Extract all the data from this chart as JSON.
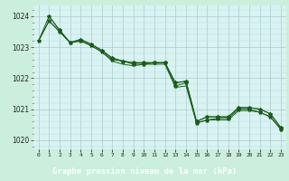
{
  "xlabel": "Graphe pression niveau de la mer (hPa)",
  "ylim": [
    1019.7,
    1024.35
  ],
  "xlim": [
    -0.5,
    23.5
  ],
  "background_color": "#cceedd",
  "plot_bg_color": "#d9f2f2",
  "grid_major_color": "#aacccc",
  "grid_minor_color": "#bbdddd",
  "line_color": "#1a5c1a",
  "label_bg_color": "#3a7a3a",
  "label_text_color": "#ffffff",
  "xtick_labels": [
    "0",
    "1",
    "2",
    "3",
    "4",
    "5",
    "6",
    "7",
    "8",
    "9",
    "10",
    "11",
    "12",
    "13",
    "14",
    "15",
    "16",
    "17",
    "18",
    "19",
    "20",
    "21",
    "22",
    "23"
  ],
  "yticks": [
    1020,
    1021,
    1022,
    1023,
    1024
  ],
  "line1_x": [
    0,
    1,
    2,
    3,
    4,
    5,
    6,
    7,
    8,
    9,
    10,
    11,
    12,
    13,
    14,
    15,
    16,
    17,
    18,
    19,
    20,
    21,
    22,
    23
  ],
  "line1_y": [
    1023.2,
    1023.85,
    1023.5,
    1023.15,
    1023.2,
    1023.05,
    1022.85,
    1022.6,
    1022.55,
    1022.5,
    1022.5,
    1022.5,
    1022.5,
    1021.85,
    1021.9,
    1020.6,
    1020.75,
    1020.75,
    1020.75,
    1021.05,
    1021.05,
    1021.0,
    1020.85,
    1020.4
  ],
  "line2_x": [
    0,
    1,
    2,
    3,
    4,
    5,
    6,
    7,
    8,
    9,
    10,
    11,
    12,
    13,
    14,
    15,
    16,
    17,
    18,
    19,
    20,
    21,
    22,
    23
  ],
  "line2_y": [
    1023.2,
    1023.85,
    1023.5,
    1023.15,
    1023.2,
    1023.05,
    1022.85,
    1022.55,
    1022.45,
    1022.4,
    1022.45,
    1022.45,
    1022.45,
    1021.7,
    1021.75,
    1020.55,
    1020.65,
    1020.65,
    1020.65,
    1020.95,
    1020.95,
    1020.9,
    1020.75,
    1020.35
  ],
  "line3_x": [
    0,
    1,
    2,
    3,
    4,
    5,
    6,
    7,
    8,
    9,
    10,
    11,
    12,
    13,
    14,
    15,
    16,
    17,
    18,
    19,
    20,
    21,
    22,
    23
  ],
  "line3_y": [
    1023.2,
    1024.0,
    1023.55,
    1023.15,
    1023.25,
    1023.1,
    1022.9,
    1022.65,
    1022.55,
    1022.5,
    1022.5,
    1022.5,
    1022.5,
    1021.85,
    1021.9,
    1020.6,
    1020.75,
    1020.75,
    1020.75,
    1021.05,
    1021.05,
    1021.0,
    1020.85,
    1020.4
  ],
  "line4_x": [
    1,
    2,
    3,
    4,
    5,
    6,
    7,
    8,
    9,
    10,
    11,
    12,
    13,
    14,
    15,
    16,
    17,
    18,
    19,
    20,
    21,
    22,
    23
  ],
  "line4_y": [
    1024.0,
    1023.55,
    1023.15,
    1023.25,
    1023.1,
    1022.9,
    1022.65,
    1022.55,
    1022.45,
    1022.45,
    1022.5,
    1022.5,
    1021.75,
    1021.85,
    1020.55,
    1020.65,
    1020.7,
    1020.7,
    1021.0,
    1021.0,
    1020.9,
    1020.75,
    1020.35
  ]
}
